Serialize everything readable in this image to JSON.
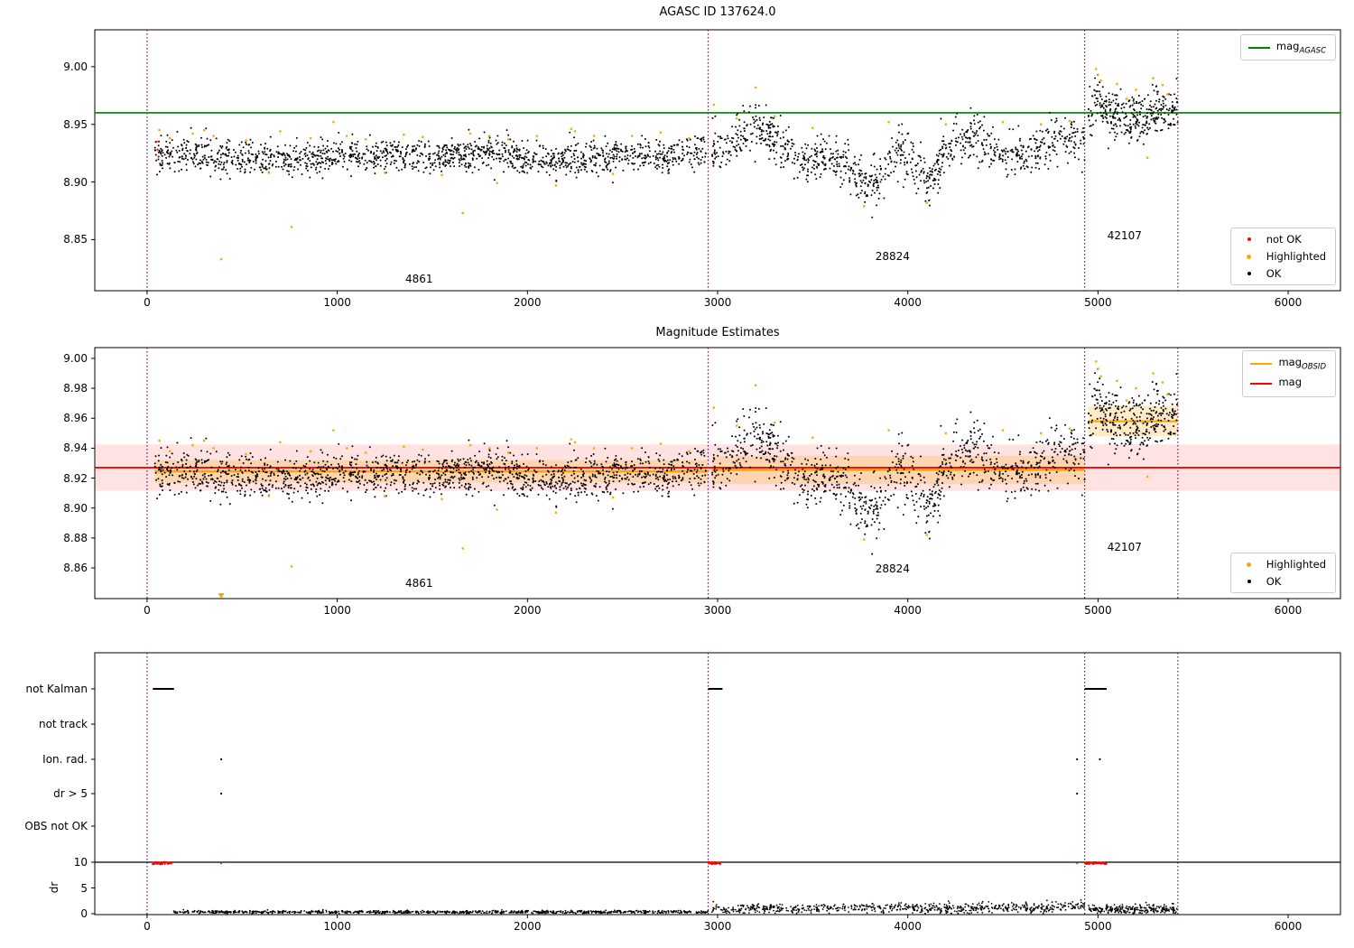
{
  "colors": {
    "ok": "#000000",
    "highlighted": "#FFA500",
    "not_ok": "#FF0000",
    "mag_agasc": "#008000",
    "mag": "#FF0000",
    "mag_obsid": "#FFA500",
    "vline": "#800080",
    "band_red": "rgba(255,0,0,0.11)",
    "band_orange": "rgba(255,165,0,0.22)"
  },
  "chart_data": {
    "xlim": [
      -275,
      6275
    ],
    "xticks": [
      0,
      1000,
      2000,
      3000,
      4000,
      5000,
      6000
    ],
    "vlines": [
      0,
      2950,
      4930,
      5420
    ],
    "obsids": [
      {
        "id": "4861",
        "x_range": [
          40,
          2950
        ]
      },
      {
        "id": "28824",
        "x_range": [
          2970,
          4930
        ]
      },
      {
        "id": "42107",
        "x_range": [
          4950,
          5420
        ]
      }
    ],
    "mag_scatter": {
      "segments": [
        {
          "obsid": "4861",
          "n": 1500,
          "std": 0.007,
          "profile": [
            [
              40,
              8.924
            ],
            [
              500,
              8.922
            ],
            [
              800,
              8.92
            ],
            [
              1000,
              8.925
            ],
            [
              1500,
              8.922
            ],
            [
              1800,
              8.925
            ],
            [
              2200,
              8.918
            ],
            [
              2600,
              8.922
            ],
            [
              2950,
              8.925
            ]
          ]
        },
        {
          "obsid": "28824",
          "n": 1000,
          "std": 0.01,
          "profile": [
            [
              2970,
              8.935
            ],
            [
              3050,
              8.928
            ],
            [
              3200,
              8.95
            ],
            [
              3300,
              8.938
            ],
            [
              3450,
              8.915
            ],
            [
              3600,
              8.924
            ],
            [
              3750,
              8.9
            ],
            [
              3850,
              8.897
            ],
            [
              3950,
              8.933
            ],
            [
              4050,
              8.912
            ],
            [
              4100,
              8.896
            ],
            [
              4200,
              8.928
            ],
            [
              4350,
              8.94
            ],
            [
              4500,
              8.92
            ],
            [
              4650,
              8.925
            ],
            [
              4800,
              8.94
            ],
            [
              4930,
              8.932
            ]
          ]
        },
        {
          "obsid": "42107",
          "n": 330,
          "std": 0.01,
          "profile": [
            [
              4950,
              8.958
            ],
            [
              5000,
              8.975
            ],
            [
              5050,
              8.96
            ],
            [
              5150,
              8.954
            ],
            [
              5250,
              8.956
            ],
            [
              5350,
              8.963
            ],
            [
              5420,
              8.96
            ]
          ]
        }
      ],
      "highlighted": [
        [
          390,
          8.833
        ],
        [
          760,
          8.861
        ],
        [
          1660,
          8.873
        ],
        [
          1840,
          8.899
        ],
        [
          2150,
          8.897
        ],
        [
          3770,
          8.879
        ],
        [
          4100,
          8.882
        ],
        [
          5260,
          8.921
        ],
        [
          4990,
          8.998
        ],
        [
          5000,
          8.993
        ],
        [
          5015,
          8.988
        ],
        [
          5290,
          8.99
        ],
        [
          5340,
          8.984
        ],
        [
          5365,
          8.976
        ],
        [
          5150,
          8.972
        ],
        [
          65,
          8.945
        ],
        [
          300,
          8.945
        ],
        [
          980,
          8.952
        ],
        [
          2230,
          8.946
        ],
        [
          2980,
          8.967
        ],
        [
          3200,
          8.982
        ],
        [
          120,
          8.938
        ],
        [
          240,
          8.942
        ],
        [
          350,
          8.94
        ],
        [
          520,
          8.936
        ],
        [
          640,
          8.908
        ],
        [
          700,
          8.944
        ],
        [
          860,
          8.938
        ],
        [
          1050,
          8.94
        ],
        [
          1150,
          8.937
        ],
        [
          1250,
          8.908
        ],
        [
          1350,
          8.941
        ],
        [
          1450,
          8.939
        ],
        [
          1550,
          8.906
        ],
        [
          1700,
          8.942
        ],
        [
          1800,
          8.94
        ],
        [
          1900,
          8.937
        ],
        [
          2050,
          8.94
        ],
        [
          2250,
          8.944
        ],
        [
          2350,
          8.94
        ],
        [
          2450,
          8.907
        ],
        [
          2550,
          8.94
        ],
        [
          2700,
          8.943
        ],
        [
          2850,
          8.938
        ],
        [
          3100,
          8.955
        ],
        [
          3300,
          8.957
        ],
        [
          3500,
          8.947
        ],
        [
          3900,
          8.952
        ],
        [
          4200,
          8.95
        ],
        [
          4500,
          8.952
        ],
        [
          4700,
          8.95
        ],
        [
          4850,
          8.953
        ],
        [
          5100,
          8.985
        ],
        [
          5200,
          8.98
        ]
      ],
      "not_ok": [
        [
          50,
          8.935
        ],
        [
          55,
          8.928
        ],
        [
          60,
          8.922
        ]
      ]
    },
    "plots": [
      {
        "type": "scatter",
        "title": "AGASC ID 137624.0",
        "ylim": [
          8.8057,
          9.032
        ],
        "yticks": [
          9.0,
          8.95,
          8.9,
          8.85
        ],
        "hline": {
          "y": 8.96,
          "label": "mag_AGASC"
        },
        "legend_line": {
          "base": "mag",
          "sub": "AGASC"
        },
        "legend_items": [
          "not OK",
          "Highlighted",
          "OK"
        ],
        "annotations": [
          {
            "text": "4861",
            "x": 1430,
            "y": 8.815
          },
          {
            "text": "28824",
            "x": 3920,
            "y": 8.835
          },
          {
            "text": "42107",
            "x": 5140,
            "y": 8.853
          }
        ]
      },
      {
        "type": "scatter",
        "title": "Magnitude Estimates",
        "ylim": [
          8.8395,
          9.0072
        ],
        "yticks": [
          9.0,
          8.98,
          8.96,
          8.94,
          8.92,
          8.9,
          8.88,
          8.86
        ],
        "mag_line": {
          "y": 8.927,
          "band": [
            8.9115,
            8.9425
          ]
        },
        "obsid_lines": [
          {
            "x_range": [
              40,
              2950
            ],
            "y": 8.9245,
            "band": [
              8.917,
              8.932
            ]
          },
          {
            "x_range": [
              2970,
              4930
            ],
            "y": 8.9255,
            "band": [
              8.916,
              8.935
            ]
          },
          {
            "x_range": [
              4950,
              5420
            ],
            "y": 8.958,
            "band": [
              8.948,
              8.968
            ]
          }
        ],
        "legend_lines": [
          {
            "base": "mag",
            "sub": "OBSID"
          },
          {
            "base": "mag",
            "sub": ""
          }
        ],
        "legend_items": [
          "Highlighted",
          "OK"
        ],
        "annotations": [
          {
            "text": "4861",
            "x": 1430,
            "y": 8.849
          },
          {
            "text": "28824",
            "x": 3920,
            "y": 8.859
          },
          {
            "text": "42107",
            "x": 5140,
            "y": 8.873
          }
        ]
      },
      {
        "type": "scatter",
        "categories": [
          "not Kalman",
          "not track",
          "Ion. rad.",
          "dr > 5",
          "OBS not OK"
        ],
        "flag_marks": {
          "not_kalman_ranges": [
            [
              30,
              130
            ],
            [
              2950,
              3015
            ],
            [
              4930,
              5035
            ]
          ],
          "ion_rad_x": [
            390,
            4890,
            5010
          ],
          "dr_gt5_x": [
            390,
            4890
          ]
        },
        "dr_axis": {
          "label": "dr",
          "ticks": [
            10,
            5,
            0
          ],
          "cap": 10,
          "red_ranges": [
            [
              30,
              130
            ],
            [
              2950,
              3015
            ],
            [
              4930,
              5045
            ]
          ],
          "red_singles": [
            390,
            4890
          ],
          "trace": [
            {
              "n": 850,
              "std": 0.15,
              "clip_min": 0.05,
              "profile": [
                [
                  140,
                  0.35
                ],
                [
                  1500,
                  0.3
                ],
                [
                  2950,
                  0.35
                ]
              ]
            },
            {
              "n": 680,
              "std": 0.45,
              "clip_min": 0.05,
              "profile": [
                [
                  2970,
                  0.8
                ],
                [
                  3200,
                  1.1
                ],
                [
                  3500,
                  0.9
                ],
                [
                  3800,
                  1.25
                ],
                [
                  4100,
                  1.0
                ],
                [
                  4400,
                  1.2
                ],
                [
                  4700,
                  1.1
                ],
                [
                  4930,
                  1.6
                ]
              ]
            },
            {
              "n": 240,
              "std": 0.45,
              "clip_min": 0.05,
              "profile": [
                [
                  4950,
                  0.9
                ],
                [
                  5150,
                  0.8
                ],
                [
                  5420,
                  1.0
                ]
              ]
            }
          ]
        }
      }
    ]
  }
}
